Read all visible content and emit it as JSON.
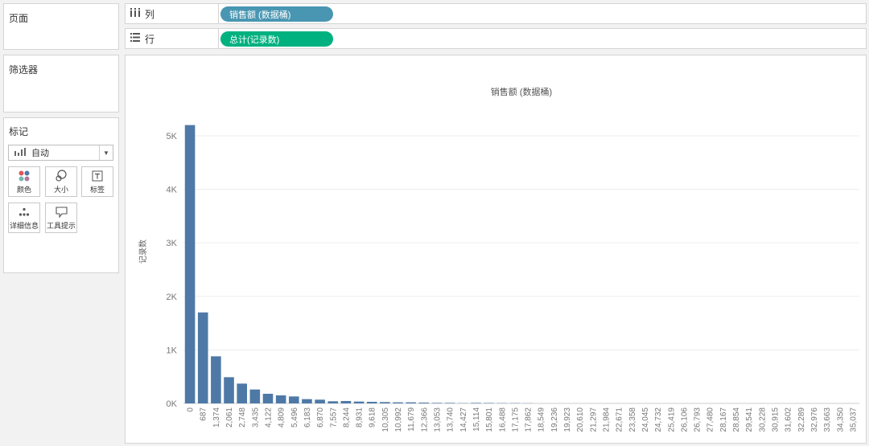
{
  "pages_card": {
    "title": "页面"
  },
  "filters_card": {
    "title": "筛选器"
  },
  "marks_card": {
    "title": "标记",
    "mark_type": "自动",
    "buttons": {
      "color": "颜色",
      "size": "大小",
      "label": "标签",
      "detail": "详细信息",
      "tooltip": "工具提示"
    }
  },
  "columns_shelf": {
    "label": "列",
    "pill": "销售额 (数据桶)"
  },
  "rows_shelf": {
    "label": "行",
    "pill": "总计(记录数)"
  },
  "colors": {
    "bar": "#4e79a7",
    "pill_dimension": "#4996b2",
    "pill_measure": "#00b180"
  },
  "chart_data": {
    "type": "bar",
    "title": "销售额 (数据桶)",
    "xlabel": "",
    "ylabel": "记录数",
    "ylim": [
      0,
      5600
    ],
    "yticks": [
      0,
      1000,
      2000,
      3000,
      4000,
      5000
    ],
    "ytick_labels": [
      "0K",
      "1K",
      "2K",
      "3K",
      "4K",
      "5K"
    ],
    "categories": [
      "0",
      "687",
      "1,374",
      "2,061",
      "2,748",
      "3,435",
      "4,122",
      "4,809",
      "5,496",
      "6,183",
      "6,870",
      "7,557",
      "8,244",
      "8,931",
      "9,618",
      "10,305",
      "10,992",
      "11,679",
      "12,366",
      "13,053",
      "13,740",
      "14,427",
      "15,114",
      "15,801",
      "16,488",
      "17,175",
      "17,862",
      "18,549",
      "19,236",
      "19,923",
      "20,610",
      "21,297",
      "21,984",
      "22,671",
      "23,358",
      "24,045",
      "24,732",
      "25,419",
      "26,106",
      "26,793",
      "27,480",
      "28,167",
      "28,854",
      "29,541",
      "30,228",
      "30,915",
      "31,602",
      "32,289",
      "32,976",
      "33,663",
      "34,350",
      "35,037"
    ],
    "values": [
      5200,
      1700,
      880,
      490,
      370,
      260,
      180,
      150,
      130,
      80,
      70,
      40,
      45,
      35,
      30,
      25,
      20,
      20,
      15,
      10,
      10,
      5,
      10,
      8,
      5,
      5,
      3,
      0,
      0,
      0,
      0,
      0,
      0,
      0,
      0,
      0,
      0,
      0,
      0,
      0,
      0,
      0,
      0,
      0,
      0,
      0,
      0,
      0,
      0,
      0,
      0,
      0
    ]
  }
}
